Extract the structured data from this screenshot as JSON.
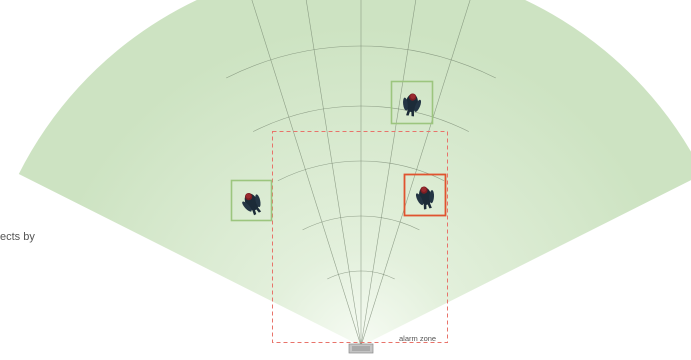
{
  "side_text": "ects by",
  "alarm_zone": {
    "label": "alarm zone",
    "border_color": "#e8736a"
  },
  "detections": [
    {
      "id": "person-top",
      "status": "normal",
      "box_color": "#9cc57e"
    },
    {
      "id": "person-left",
      "status": "normal",
      "box_color": "#9cc57e"
    },
    {
      "id": "person-right",
      "status": "alarm",
      "box_color": "#e0532f"
    }
  ],
  "colors": {
    "field_fill_outer": "#cde3c2",
    "field_fill_inner": "#f6fbf3",
    "grid_lines": "#6f7f6a",
    "sensor": "#b5b5b5"
  },
  "icons": {
    "sensor": "radar-sensor-icon",
    "person": "person-topdown-icon"
  }
}
